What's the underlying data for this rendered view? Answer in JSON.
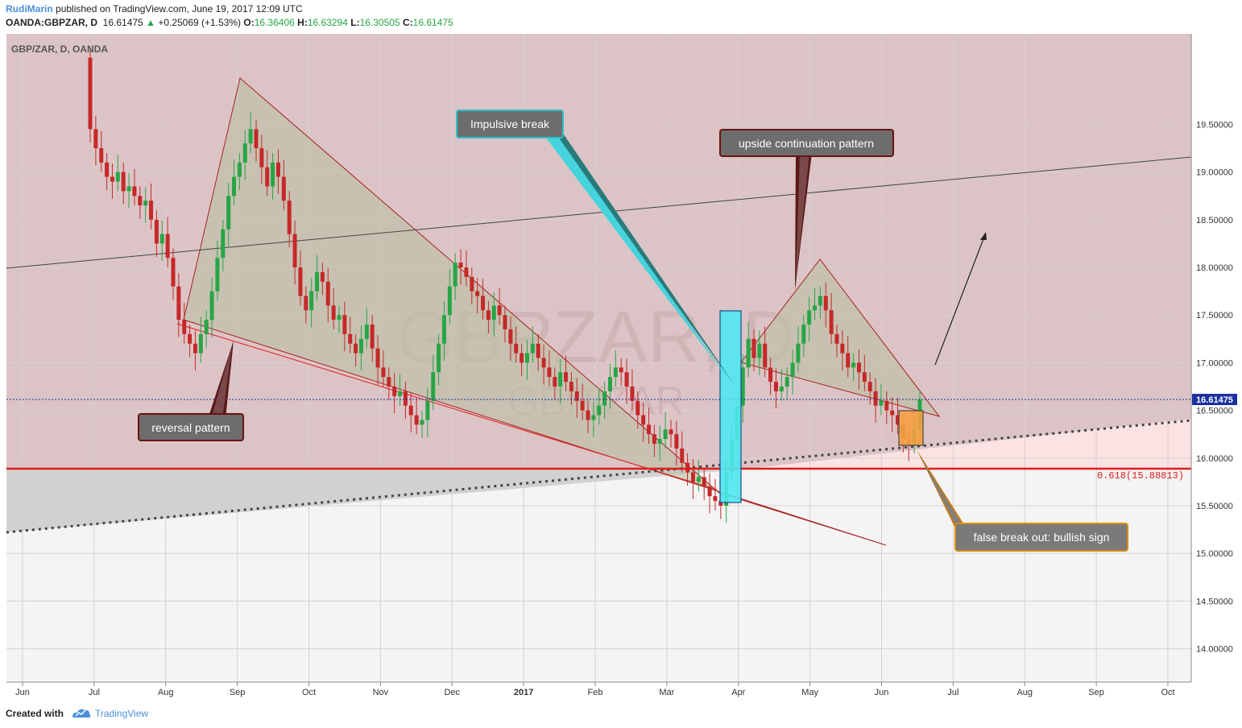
{
  "header": {
    "author": "RudiMarin",
    "published_text": "published on TradingView.com, June 19, 2017 12:09 UTC",
    "symbol_interval": "OANDA:GBPZAR, D",
    "last_price": "16.61475",
    "change_arrow": "▲",
    "change": "+0.25069 (+1.53%)",
    "open_label": "O:",
    "open": "16.36406",
    "high_label": "H:",
    "high": "16.63294",
    "low_label": "L:",
    "low": "16.30505",
    "close_label": "C:",
    "close": "16.61475"
  },
  "footer": {
    "created_with": "Created with",
    "brand": "TradingView",
    "logo_icon": "tradingview-cloud-icon"
  },
  "chart_data": {
    "type": "candlestick",
    "title": "GBP/ZAR, D, OANDA",
    "watermark": "GBPZAR, D",
    "watermark_sub": "GBP/ZAR",
    "x_axis_labels": [
      "Jun",
      "Jul",
      "Aug",
      "Sep",
      "Oct",
      "Nov",
      "Dec",
      "2017",
      "Feb",
      "Mar",
      "Apr",
      "May",
      "Jun",
      "Jul",
      "Aug",
      "Sep",
      "Oct"
    ],
    "y_axis_labels": [
      "19.50000",
      "19.00000",
      "18.50000",
      "18.00000",
      "17.50000",
      "17.00000",
      "16.50000",
      "16.00000",
      "15.50000",
      "15.00000",
      "14.50000",
      "14.00000"
    ],
    "y_ticks": [
      19.5,
      19.0,
      18.5,
      18.0,
      17.5,
      17.0,
      16.5,
      16.0,
      15.5,
      15.0,
      14.5,
      14.0
    ],
    "ylim": [
      13.65,
      20.45
    ],
    "last_price": 16.61475,
    "last_price_label": "16.61475",
    "fib_level": 15.88813,
    "fib_label": "0.618(15.88813)",
    "bullish_color": "#26a645",
    "bearish_color": "#c62828",
    "annotations": [
      {
        "text": "Impulsive break",
        "style": "teal"
      },
      {
        "text": "upside continuation pattern",
        "style": "maroon"
      },
      {
        "text": "reversal pattern",
        "style": "maroon"
      },
      {
        "text": "false break out: bullish sign",
        "style": "orange"
      }
    ],
    "closes": [
      19.45,
      19.25,
      19.1,
      18.95,
      18.9,
      19.0,
      18.8,
      18.85,
      18.75,
      18.65,
      18.7,
      18.5,
      18.25,
      18.35,
      18.1,
      17.8,
      17.45,
      17.3,
      17.2,
      17.1,
      17.3,
      17.45,
      17.75,
      18.1,
      18.4,
      18.75,
      18.95,
      19.1,
      19.3,
      19.45,
      19.25,
      19.05,
      18.85,
      19.1,
      18.95,
      18.7,
      18.35,
      18.0,
      17.7,
      17.55,
      17.75,
      17.95,
      17.85,
      17.6,
      17.45,
      17.5,
      17.3,
      17.2,
      17.1,
      17.25,
      17.4,
      17.15,
      16.95,
      16.85,
      16.75,
      16.65,
      16.7,
      16.55,
      16.45,
      16.35,
      16.4,
      16.6,
      16.9,
      17.2,
      17.5,
      17.8,
      18.05,
      18.0,
      17.9,
      17.75,
      17.7,
      17.55,
      17.45,
      17.6,
      17.5,
      17.35,
      17.2,
      17.1,
      17.0,
      17.1,
      17.2,
      17.05,
      16.95,
      16.85,
      16.75,
      16.9,
      16.8,
      16.7,
      16.6,
      16.5,
      16.4,
      16.45,
      16.55,
      16.7,
      16.85,
      16.95,
      16.9,
      16.75,
      16.6,
      16.45,
      16.35,
      16.25,
      16.15,
      16.2,
      16.3,
      16.25,
      16.1,
      15.95,
      15.85,
      15.75,
      15.8,
      15.7,
      15.6,
      15.55,
      15.5,
      15.85,
      16.2,
      16.55,
      16.95,
      17.25,
      17.05,
      17.2,
      16.95,
      16.8,
      16.7,
      16.75,
      16.85,
      17.0,
      17.2,
      17.4,
      17.55,
      17.6,
      17.7,
      17.55,
      17.3,
      17.2,
      17.1,
      16.95,
      17.0,
      16.9,
      16.8,
      16.7,
      16.55,
      16.6,
      16.5,
      16.45,
      16.35,
      16.2,
      16.15,
      16.3,
      16.61475
    ]
  }
}
